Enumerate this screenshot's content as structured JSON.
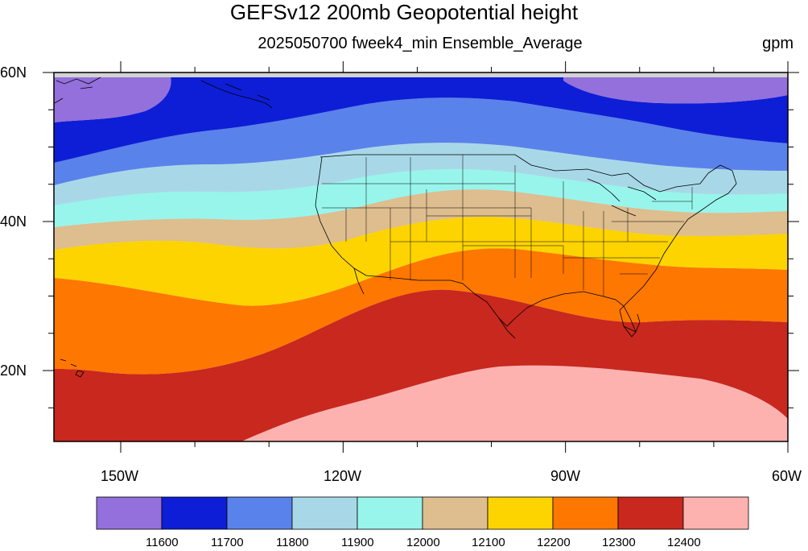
{
  "title": "GEFSv12 200mb Geopotential height",
  "subtitle": "2025050700 fweek4_min Ensemble_Average",
  "units": "gpm",
  "lat_labels": [
    "60N",
    "40N",
    "20N"
  ],
  "lon_labels": [
    "150W",
    "120W",
    "90W",
    "60W"
  ],
  "colorbar": {
    "levels": [
      "11600",
      "11700",
      "11800",
      "11900",
      "12000",
      "12100",
      "12200",
      "12300",
      "12400"
    ],
    "colors": [
      "#9370DB",
      "#0E1ED6",
      "#5A82EB",
      "#A8D8E8",
      "#98F5EC",
      "#DEBD8F",
      "#FDD400",
      "#FE7700",
      "#C8281E",
      "#FDB2B0"
    ]
  },
  "colors": {
    "land_mask": "#D3D3D3",
    "map_border": "#000000",
    "state_lines": "#000000"
  }
}
